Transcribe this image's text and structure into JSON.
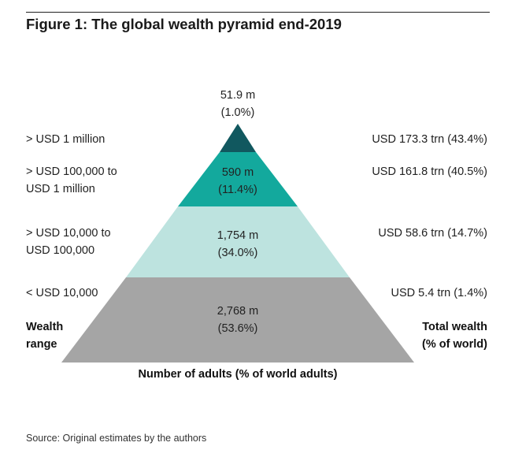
{
  "title": "Figure 1: The global wealth pyramid end-2019",
  "source": "Source: Original estimates by the authors",
  "colors": {
    "tier1": "#11585f",
    "tier2": "#13a99d",
    "tier3": "#bde3df",
    "tier4": "#a5a5a5"
  },
  "chart_data": {
    "type": "pyramid",
    "title": "Figure 1: The global wealth pyramid end-2019",
    "xlabel": "Number of adults (% of world adults)",
    "left_axis_label": [
      "Wealth",
      "range"
    ],
    "right_axis_label": [
      "Total wealth",
      "(% of world)"
    ],
    "tiers": [
      {
        "wealth_range": [
          "> USD 1 million"
        ],
        "adults": "51.9 m",
        "adults_pct": "(1.0%)",
        "total_wealth": "USD 173.3 trn (43.4%)",
        "adults_millions": 51.9,
        "adults_share": 1.0,
        "wealth_trn": 173.3,
        "wealth_share": 43.4
      },
      {
        "wealth_range": [
          "> USD 100,000 to",
          "USD 1 million"
        ],
        "adults": "590 m",
        "adults_pct": "(11.4%)",
        "total_wealth": "USD 161.8 trn (40.5%)",
        "adults_millions": 590,
        "adults_share": 11.4,
        "wealth_trn": 161.8,
        "wealth_share": 40.5
      },
      {
        "wealth_range": [
          "> USD 10,000 to",
          "USD 100,000"
        ],
        "adults": "1,754 m",
        "adults_pct": "(34.0%)",
        "total_wealth": "USD 58.6 trn (14.7%)",
        "adults_millions": 1754,
        "adults_share": 34.0,
        "wealth_trn": 58.6,
        "wealth_share": 14.7
      },
      {
        "wealth_range": [
          "< USD 10,000"
        ],
        "adults": "2,768 m",
        "adults_pct": "(53.6%)",
        "total_wealth": "USD 5.4 trn (1.4%)",
        "adults_millions": 2768,
        "adults_share": 53.6,
        "wealth_trn": 5.4,
        "wealth_share": 1.4
      }
    ]
  }
}
